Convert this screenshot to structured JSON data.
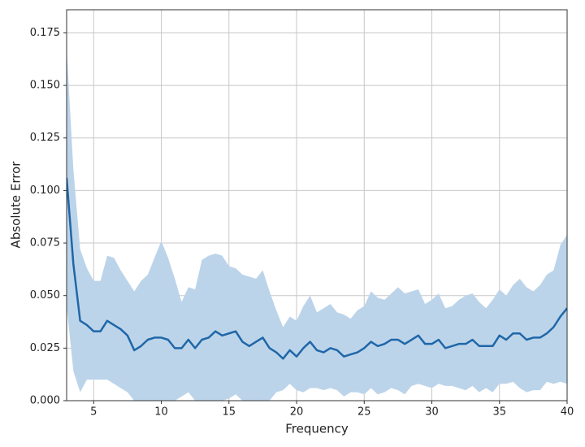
{
  "chart_data": {
    "type": "line",
    "x_label": "Frequency",
    "y_label": "Absolute Error",
    "x": [
      3,
      3.5,
      4,
      4.5,
      5,
      5.5,
      6,
      6.5,
      7,
      7.5,
      8,
      8.5,
      9,
      9.5,
      10,
      10.5,
      11,
      11.5,
      12,
      12.5,
      13,
      13.5,
      14,
      14.5,
      15,
      15.5,
      16,
      16.5,
      17,
      17.5,
      18,
      18.5,
      19,
      19.5,
      20,
      20.5,
      21,
      21.5,
      22,
      22.5,
      23,
      23.5,
      24,
      24.5,
      25,
      25.5,
      26,
      26.5,
      27,
      27.5,
      28,
      28.5,
      29,
      29.5,
      30,
      30.5,
      31,
      31.5,
      32,
      32.5,
      33,
      33.5,
      34,
      34.5,
      35,
      35.5,
      36,
      36.5,
      37,
      37.5,
      38,
      38.5,
      39,
      39.5,
      40
    ],
    "values": [
      0.106,
      0.065,
      0.038,
      0.036,
      0.033,
      0.033,
      0.038,
      0.036,
      0.034,
      0.031,
      0.024,
      0.026,
      0.029,
      0.03,
      0.03,
      0.029,
      0.025,
      0.025,
      0.029,
      0.025,
      0.029,
      0.03,
      0.033,
      0.031,
      0.032,
      0.033,
      0.028,
      0.026,
      0.028,
      0.03,
      0.025,
      0.023,
      0.02,
      0.024,
      0.021,
      0.025,
      0.028,
      0.024,
      0.023,
      0.025,
      0.024,
      0.021,
      0.022,
      0.023,
      0.025,
      0.028,
      0.026,
      0.027,
      0.029,
      0.029,
      0.027,
      0.029,
      0.031,
      0.027,
      0.027,
      0.029,
      0.025,
      0.026,
      0.027,
      0.027,
      0.029,
      0.026,
      0.026,
      0.026,
      0.031,
      0.029,
      0.032,
      0.032,
      0.029,
      0.03,
      0.03,
      0.032,
      0.035,
      0.04,
      0.044
    ],
    "upper": [
      0.168,
      0.11,
      0.072,
      0.063,
      0.057,
      0.057,
      0.069,
      0.068,
      0.062,
      0.057,
      0.052,
      0.057,
      0.06,
      0.068,
      0.076,
      0.068,
      0.058,
      0.047,
      0.054,
      0.053,
      0.067,
      0.069,
      0.07,
      0.069,
      0.064,
      0.063,
      0.06,
      0.059,
      0.058,
      0.062,
      0.052,
      0.043,
      0.035,
      0.04,
      0.038,
      0.045,
      0.05,
      0.042,
      0.044,
      0.046,
      0.042,
      0.041,
      0.039,
      0.043,
      0.045,
      0.052,
      0.049,
      0.048,
      0.051,
      0.054,
      0.051,
      0.052,
      0.053,
      0.046,
      0.048,
      0.051,
      0.044,
      0.045,
      0.048,
      0.05,
      0.051,
      0.047,
      0.044,
      0.048,
      0.053,
      0.05,
      0.055,
      0.058,
      0.054,
      0.052,
      0.055,
      0.06,
      0.062,
      0.074,
      0.079
    ],
    "lower": [
      0.045,
      0.014,
      0.004,
      0.01,
      0.01,
      0.01,
      0.01,
      0.008,
      0.006,
      0.004,
      0,
      0,
      0,
      0,
      0,
      0,
      0,
      0.002,
      0.004,
      0,
      0,
      0,
      0,
      0,
      0.001,
      0.003,
      0,
      0,
      0,
      0,
      0,
      0.004,
      0.005,
      0.008,
      0.005,
      0.004,
      0.006,
      0.006,
      0.005,
      0.006,
      0.005,
      0.002,
      0.004,
      0.004,
      0.003,
      0.006,
      0.003,
      0.004,
      0.006,
      0.005,
      0.003,
      0.007,
      0.008,
      0.007,
      0.006,
      0.008,
      0.007,
      0.007,
      0.006,
      0.005,
      0.007,
      0.004,
      0.006,
      0.004,
      0.008,
      0.008,
      0.009,
      0.006,
      0.004,
      0.005,
      0.005,
      0.009,
      0.008,
      0.009,
      0.008
    ],
    "color": "#1f67a8",
    "band_color": "#bcd4ea",
    "xlim": [
      3,
      40
    ],
    "xticks": [
      5,
      10,
      15,
      20,
      25,
      30,
      35,
      40
    ],
    "ylim": [
      0,
      0.186
    ],
    "yticks": [
      {
        "value": 0,
        "label": "0.000"
      },
      {
        "value": 0.025,
        "label": "0.025"
      },
      {
        "value": 0.05,
        "label": "0.050"
      },
      {
        "value": 0.075,
        "label": "0.075"
      },
      {
        "value": 0.1,
        "label": "0.100"
      },
      {
        "value": 0.125,
        "label": "0.125"
      },
      {
        "value": 0.15,
        "label": "0.150"
      },
      {
        "value": 0.175,
        "label": "0.175"
      }
    ],
    "grid": true
  }
}
